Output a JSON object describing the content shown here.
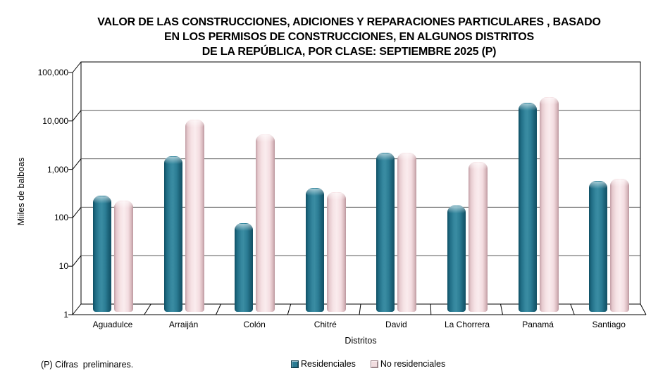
{
  "title": {
    "line1": "VALOR DE LAS CONSTRUCCIONES, ADICIONES Y REPARACIONES PARTICULARES , BASADO",
    "line2": "EN LOS PERMISOS DE CONSTRUCCIONES, EN ALGUNOS DISTRITOS",
    "line3": "DE LA REPÚBLICA, POR CLASE: SEPTIEMBRE 2025 (P)"
  },
  "y_axis": {
    "label": "Miiles de balboas",
    "ticks": [
      "100,000",
      "10,000",
      "1,000",
      "100",
      "10",
      "1"
    ]
  },
  "x_axis": {
    "label": "Distritos"
  },
  "footnote": "(P) Cifras  preliminares.",
  "legend": [
    {
      "label": "Residenciales",
      "color": "#2a7b93",
      "border": "#0f3d4d"
    },
    {
      "label": "No residenciales",
      "color": "#f2dcdf",
      "border": "#9c7f85"
    }
  ],
  "chart_data": {
    "type": "bar",
    "scale": "log",
    "title": "VALOR DE LAS CONSTRUCCIONES, ADICIONES Y REPARACIONES PARTICULARES , BASADO EN LOS PERMISOS DE CONSTRUCCIONES, EN ALGUNOS DISTRITOS DE LA REPÚBLICA, POR CLASE: SEPTIEMBRE 2025 (P)",
    "xlabel": "Distritos",
    "ylabel": "Miiles de balboas",
    "categories": [
      "Aguadulce",
      "Arraiján",
      "Colón",
      "Chitré",
      "David",
      "La Chorrera",
      "Panamá",
      "Santiago"
    ],
    "series": [
      {
        "name": "Residenciales",
        "color": "#2a7b93",
        "values": [
          250,
          1650,
          67,
          360,
          1900,
          155,
          20500,
          500
        ]
      },
      {
        "name": "No residenciales",
        "color": "#f2dcdf",
        "values": [
          195,
          9200,
          4600,
          300,
          1950,
          1250,
          27000,
          550
        ]
      }
    ],
    "ylim": [
      1,
      100000
    ],
    "y_ticks": [
      1,
      10,
      100,
      1000,
      10000,
      100000
    ],
    "gridlines": true,
    "legend_position": "bottom"
  }
}
